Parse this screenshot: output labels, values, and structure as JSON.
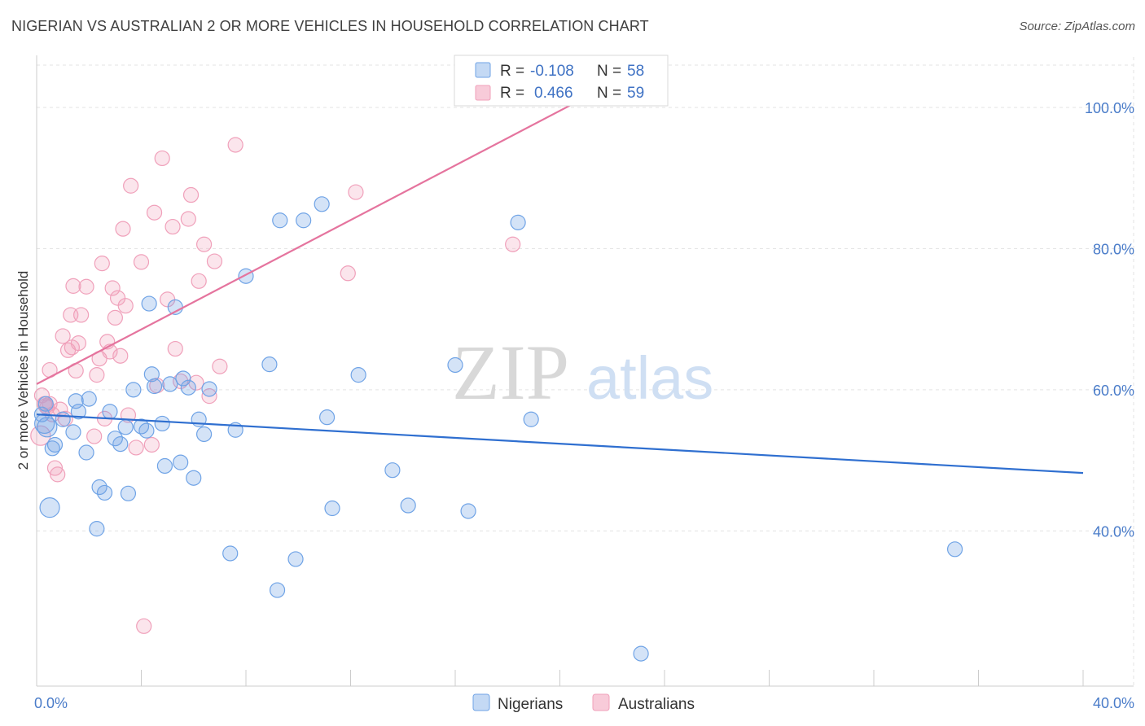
{
  "title": "NIGERIAN VS AUSTRALIAN 2 OR MORE VEHICLES IN HOUSEHOLD CORRELATION CHART",
  "source": "Source: ZipAtlas.com",
  "watermark": {
    "zip": "ZIP",
    "atlas": "atlas"
  },
  "colors": {
    "nigerians": "#6fa3e6",
    "australians": "#f0a0ba",
    "blue_line": "#2f6fd0",
    "pink_line": "#e5749e",
    "tick_text": "#4a7cc9"
  },
  "legend": {
    "rows": [
      {
        "r_label": "R =",
        "r_value": "-0.108",
        "n_label": "N =",
        "n_value": "58"
      },
      {
        "r_label": "R =",
        "r_value": "0.466",
        "n_label": "N =",
        "n_value": "59"
      }
    ]
  },
  "chart_data": {
    "type": "scatter",
    "xlabel": "",
    "ylabel": "2 or more Vehicles in Household",
    "xlim": [
      0,
      40
    ],
    "ylim": [
      18,
      106
    ],
    "x_tick_labels": [
      "0.0%",
      "40.0%"
    ],
    "y_ticks": [
      40,
      60,
      80,
      100
    ],
    "y_tick_labels": [
      "40.0%",
      "60.0%",
      "80.0%",
      "100.0%"
    ],
    "grid": true,
    "series": [
      {
        "name": "Nigerians",
        "points": [
          [
            0.3,
            55.2
          ],
          [
            0.5,
            43.3
          ],
          [
            0.6,
            51.7
          ],
          [
            0.7,
            52.2
          ],
          [
            1.0,
            55.8
          ],
          [
            1.4,
            54.0
          ],
          [
            1.5,
            58.4
          ],
          [
            1.6,
            56.9
          ],
          [
            1.9,
            51.1
          ],
          [
            2.0,
            58.7
          ],
          [
            2.4,
            46.2
          ],
          [
            2.6,
            45.4
          ],
          [
            2.3,
            40.3
          ],
          [
            2.8,
            56.9
          ],
          [
            3.0,
            53.1
          ],
          [
            3.2,
            52.3
          ],
          [
            3.4,
            54.7
          ],
          [
            3.5,
            45.3
          ],
          [
            3.7,
            60.0
          ],
          [
            4.0,
            54.8
          ],
          [
            4.2,
            54.2
          ],
          [
            4.3,
            72.2
          ],
          [
            4.4,
            62.2
          ],
          [
            4.5,
            60.5
          ],
          [
            4.8,
            55.2
          ],
          [
            4.9,
            49.2
          ],
          [
            5.1,
            60.8
          ],
          [
            5.3,
            71.7
          ],
          [
            5.5,
            49.7
          ],
          [
            5.6,
            61.6
          ],
          [
            5.8,
            60.3
          ],
          [
            6.0,
            47.5
          ],
          [
            6.2,
            55.8
          ],
          [
            6.4,
            53.7
          ],
          [
            6.6,
            60.1
          ],
          [
            7.4,
            36.8
          ],
          [
            7.6,
            54.3
          ],
          [
            8.0,
            76.1
          ],
          [
            8.9,
            63.6
          ],
          [
            9.3,
            84.0
          ],
          [
            9.2,
            31.6
          ],
          [
            9.9,
            36.0
          ],
          [
            10.2,
            84.0
          ],
          [
            10.9,
            86.3
          ],
          [
            11.1,
            56.1
          ],
          [
            11.3,
            43.2
          ],
          [
            12.3,
            62.1
          ],
          [
            13.6,
            48.6
          ],
          [
            14.2,
            43.6
          ],
          [
            16.0,
            63.5
          ],
          [
            16.5,
            42.8
          ],
          [
            18.4,
            83.7
          ],
          [
            18.9,
            55.8
          ],
          [
            23.1,
            22.6
          ],
          [
            35.1,
            37.4
          ],
          [
            0.2,
            56.5
          ],
          [
            0.4,
            54.7
          ],
          [
            0.35,
            58.0
          ]
        ]
      },
      {
        "name": "Australians",
        "points": [
          [
            0.2,
            59.2
          ],
          [
            0.3,
            58.0
          ],
          [
            0.4,
            57.5
          ],
          [
            0.5,
            62.8
          ],
          [
            0.6,
            56.5
          ],
          [
            0.7,
            48.9
          ],
          [
            0.8,
            48.0
          ],
          [
            0.9,
            57.2
          ],
          [
            1.0,
            67.6
          ],
          [
            1.1,
            55.9
          ],
          [
            1.2,
            65.6
          ],
          [
            1.3,
            70.6
          ],
          [
            1.35,
            66.0
          ],
          [
            1.4,
            74.7
          ],
          [
            1.5,
            62.7
          ],
          [
            1.6,
            66.6
          ],
          [
            1.7,
            70.6
          ],
          [
            1.9,
            74.6
          ],
          [
            2.2,
            53.4
          ],
          [
            2.3,
            62.1
          ],
          [
            2.4,
            64.4
          ],
          [
            2.5,
            77.9
          ],
          [
            2.6,
            55.9
          ],
          [
            2.7,
            66.8
          ],
          [
            2.8,
            65.4
          ],
          [
            2.9,
            74.4
          ],
          [
            3.0,
            70.2
          ],
          [
            3.1,
            73.0
          ],
          [
            3.2,
            64.8
          ],
          [
            3.3,
            82.8
          ],
          [
            3.4,
            71.9
          ],
          [
            3.5,
            56.4
          ],
          [
            3.6,
            88.9
          ],
          [
            3.8,
            51.8
          ],
          [
            4.0,
            78.1
          ],
          [
            4.1,
            26.5
          ],
          [
            4.4,
            52.2
          ],
          [
            4.5,
            85.1
          ],
          [
            4.6,
            60.6
          ],
          [
            4.8,
            92.8
          ],
          [
            5.0,
            72.8
          ],
          [
            5.2,
            83.1
          ],
          [
            5.3,
            65.8
          ],
          [
            5.5,
            61.2
          ],
          [
            5.8,
            84.2
          ],
          [
            5.9,
            87.6
          ],
          [
            6.1,
            61.0
          ],
          [
            6.2,
            75.4
          ],
          [
            6.4,
            80.6
          ],
          [
            6.6,
            59.1
          ],
          [
            6.8,
            78.2
          ],
          [
            7.0,
            63.3
          ],
          [
            7.6,
            94.7
          ],
          [
            11.9,
            76.5
          ],
          [
            12.2,
            88.0
          ],
          [
            18.2,
            80.6
          ],
          [
            0.15,
            53.5
          ],
          [
            0.35,
            57.7
          ],
          [
            0.5,
            58.0
          ]
        ]
      }
    ],
    "trend_lines": [
      {
        "series": "Nigerians",
        "x": [
          0,
          40
        ],
        "y": [
          56.5,
          48.2
        ]
      },
      {
        "series": "Australians",
        "x": [
          0,
          20.5
        ],
        "y": [
          60.8,
          100.5
        ]
      }
    ],
    "legend_position": "top-center",
    "bottom_legend": [
      "Nigerians",
      "Australians"
    ]
  }
}
